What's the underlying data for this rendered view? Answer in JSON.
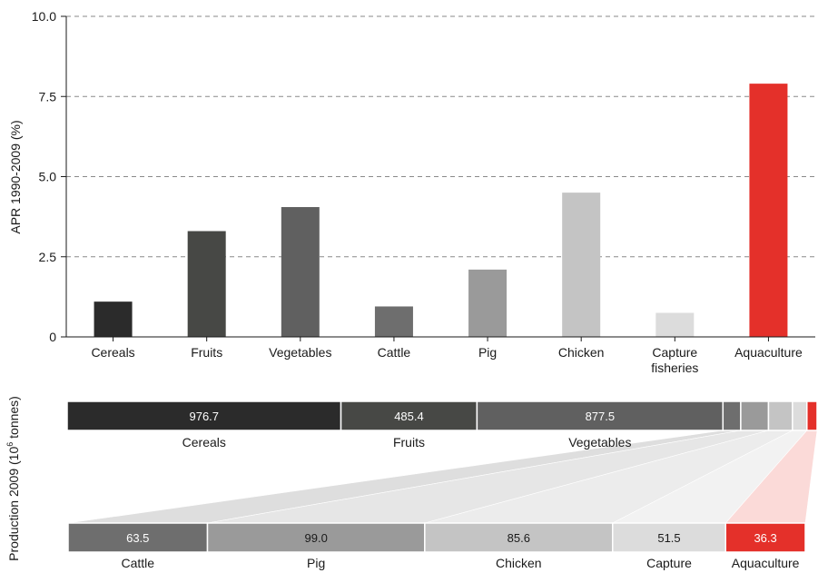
{
  "chart_data": [
    {
      "type": "bar",
      "title": "",
      "xlabel": "",
      "ylabel": "APR 1990-2009 (%)",
      "ylim": [
        0,
        10
      ],
      "yticks": [
        "0",
        "2.5",
        "5.0",
        "7.5",
        "10.0"
      ],
      "ytick_values": [
        0,
        2.5,
        5.0,
        7.5,
        10.0
      ],
      "grid": "horizontal dashed",
      "categories": [
        "Cereals",
        "Fruits",
        "Vegetables",
        "Cattle",
        "Pig",
        "Chicken",
        "Capture fisheries",
        "Aquaculture"
      ],
      "category_lines": [
        [
          "Cereals"
        ],
        [
          "Fruits"
        ],
        [
          "Vegetables"
        ],
        [
          "Cattle"
        ],
        [
          "Pig"
        ],
        [
          "Chicken"
        ],
        [
          "Capture",
          "fisheries"
        ],
        [
          "Aquaculture"
        ]
      ],
      "values": [
        1.1,
        3.3,
        4.05,
        0.95,
        2.1,
        4.5,
        0.75,
        7.9
      ],
      "colors": [
        "#2b2b2b",
        "#474845",
        "#606060",
        "#6e6e6e",
        "#9a9a9a",
        "#c4c4c4",
        "#dcdcdc",
        "#e4302a"
      ]
    },
    {
      "type": "bar",
      "subtype": "stacked-horizontal",
      "ylabel_text": "Production 2009 (10",
      "ylabel_sup": "6",
      "ylabel_tail": " tonnes)",
      "top_bar": {
        "segments": [
          {
            "name": "Cereals",
            "value": 976.7,
            "value_label": "976.7",
            "label": "Cereals",
            "color": "#2b2b2b"
          },
          {
            "name": "Fruits",
            "value": 485.4,
            "value_label": "485.4",
            "label": "Fruits",
            "color": "#474845"
          },
          {
            "name": "Vegetables",
            "value": 877.5,
            "value_label": "877.5",
            "label": "Vegetables",
            "color": "#606060"
          },
          {
            "name": "Cattle",
            "value": 63.5,
            "color": "#6e6e6e"
          },
          {
            "name": "Pig",
            "value": 99.0,
            "color": "#9a9a9a"
          },
          {
            "name": "Chicken",
            "value": 85.6,
            "color": "#c4c4c4"
          },
          {
            "name": "Capture",
            "value": 51.5,
            "color": "#dcdcdc"
          },
          {
            "name": "Aquaculture",
            "value": 36.3,
            "color": "#e4302a"
          }
        ]
      },
      "bottom_bar": {
        "segments": [
          {
            "name": "Cattle",
            "value": 63.5,
            "value_label": "63.5",
            "label": "Cattle",
            "color": "#6e6e6e"
          },
          {
            "name": "Pig",
            "value": 99.0,
            "value_label": "99.0",
            "label": "Pig",
            "color": "#9a9a9a"
          },
          {
            "name": "Chicken",
            "value": 85.6,
            "value_label": "85.6",
            "label": "Chicken",
            "color": "#c4c4c4"
          },
          {
            "name": "Capture",
            "value": 51.5,
            "value_label": "51.5",
            "label": "Capture",
            "color": "#dcdcdc"
          },
          {
            "name": "Aquaculture",
            "value": 36.3,
            "value_label": "36.3",
            "label": "Aquaculture",
            "color": "#e4302a"
          }
        ]
      }
    }
  ]
}
